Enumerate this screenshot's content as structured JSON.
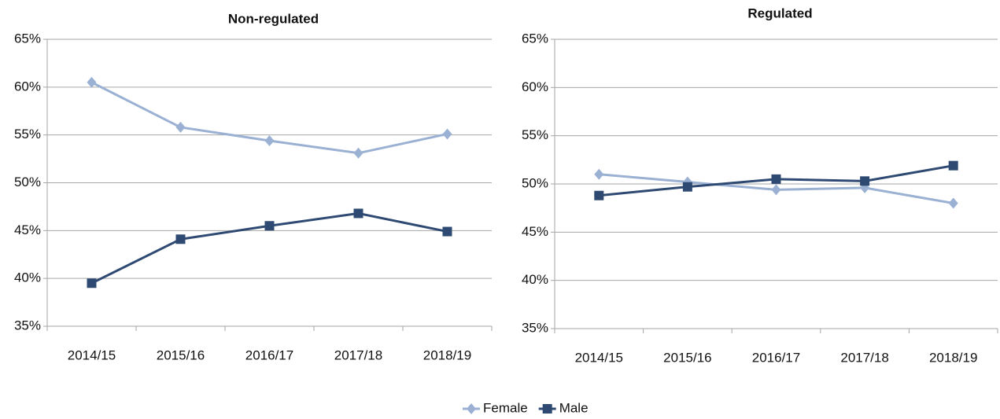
{
  "chart_data": [
    {
      "type": "line",
      "title": "Non-regulated",
      "categories": [
        "2014/15",
        "2015/16",
        "2016/17",
        "2017/18",
        "2018/19"
      ],
      "series": [
        {
          "name": "Female",
          "color": "#9bb1d4",
          "marker": "diamond",
          "values": [
            60.5,
            55.8,
            54.4,
            53.1,
            55.1
          ]
        },
        {
          "name": "Male",
          "color": "#2e4a72",
          "marker": "square",
          "values": [
            39.5,
            44.1,
            45.5,
            46.8,
            44.9
          ]
        }
      ],
      "ylim": [
        35,
        65
      ],
      "yticks": [
        {
          "value": 35,
          "label": "35%"
        },
        {
          "value": 40,
          "label": "40%"
        },
        {
          "value": 45,
          "label": "45%"
        },
        {
          "value": 50,
          "label": "50%"
        },
        {
          "value": 55,
          "label": "55%"
        },
        {
          "value": 60,
          "label": "60%"
        },
        {
          "value": 65,
          "label": "65%"
        }
      ],
      "grid": true,
      "legend": "bottom"
    },
    {
      "type": "line",
      "title": "Regulated",
      "categories": [
        "2014/15",
        "2015/16",
        "2016/17",
        "2017/18",
        "2018/19"
      ],
      "series": [
        {
          "name": "Female",
          "color": "#9bb1d4",
          "marker": "diamond",
          "values": [
            51.0,
            50.2,
            49.4,
            49.6,
            48.0
          ]
        },
        {
          "name": "Male",
          "color": "#2e4a72",
          "marker": "square",
          "values": [
            48.8,
            49.7,
            50.5,
            50.3,
            51.9
          ]
        }
      ],
      "ylim": [
        35,
        65
      ],
      "yticks": [
        {
          "value": 35,
          "label": "35%"
        },
        {
          "value": 40,
          "label": "40%"
        },
        {
          "value": 45,
          "label": "45%"
        },
        {
          "value": 50,
          "label": "50%"
        },
        {
          "value": 55,
          "label": "55%"
        },
        {
          "value": 60,
          "label": "60%"
        },
        {
          "value": 65,
          "label": "65%"
        }
      ],
      "grid": true
    }
  ]
}
